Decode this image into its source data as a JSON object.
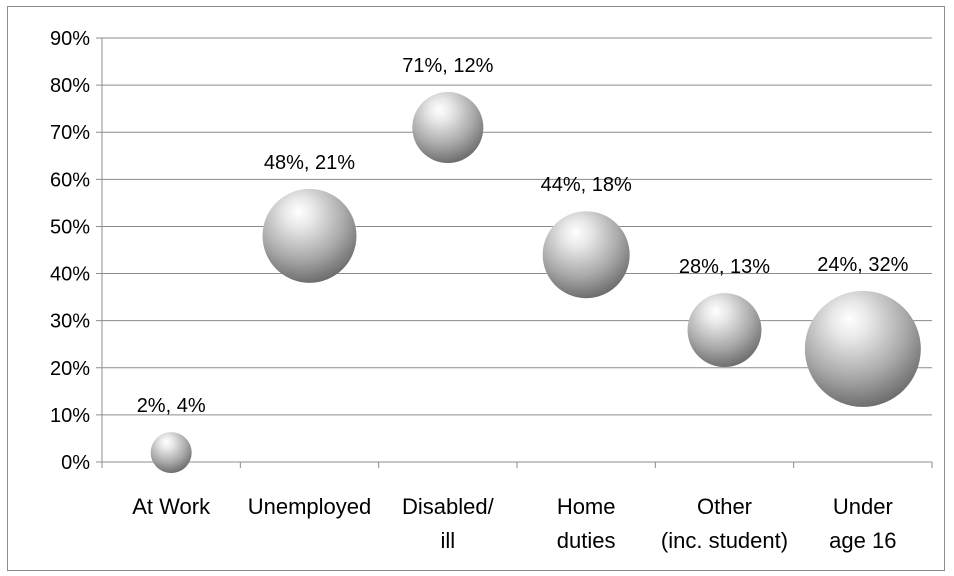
{
  "chart_data": {
    "type": "bubble",
    "title": "",
    "xlabel": "",
    "ylabel": "",
    "ylim": [
      0,
      0.9
    ],
    "y_ticks": [
      "0%",
      "10%",
      "20%",
      "30%",
      "40%",
      "50%",
      "60%",
      "70%",
      "80%",
      "90%"
    ],
    "grid": true,
    "legend": "none",
    "categories": [
      [
        "At Work"
      ],
      [
        "Unemployed"
      ],
      [
        "Disabled/",
        "ill"
      ],
      [
        "Home",
        "duties"
      ],
      [
        "Other",
        "(inc. student)"
      ],
      [
        "Under",
        "age 16"
      ]
    ],
    "points": [
      {
        "category": "At Work",
        "y": 0.02,
        "size": 0.04,
        "label": "2%, 4%"
      },
      {
        "category": "Unemployed",
        "y": 0.48,
        "size": 0.21,
        "label": "48%, 21%"
      },
      {
        "category": "Disabled/ill",
        "y": 0.71,
        "size": 0.12,
        "label": "71%, 12%"
      },
      {
        "category": "Home duties",
        "y": 0.44,
        "size": 0.18,
        "label": "44%, 18%"
      },
      {
        "category": "Other (inc. student)",
        "y": 0.28,
        "size": 0.13,
        "label": "28%, 13%"
      },
      {
        "category": "Under age 16",
        "y": 0.24,
        "size": 0.32,
        "label": "24%, 32%"
      }
    ],
    "colors": {
      "bubble_light": "#ffffff",
      "bubble_mid": "#b8b8b8",
      "bubble_dark": "#6e6e6e",
      "grid": "#8c8c8c"
    }
  }
}
